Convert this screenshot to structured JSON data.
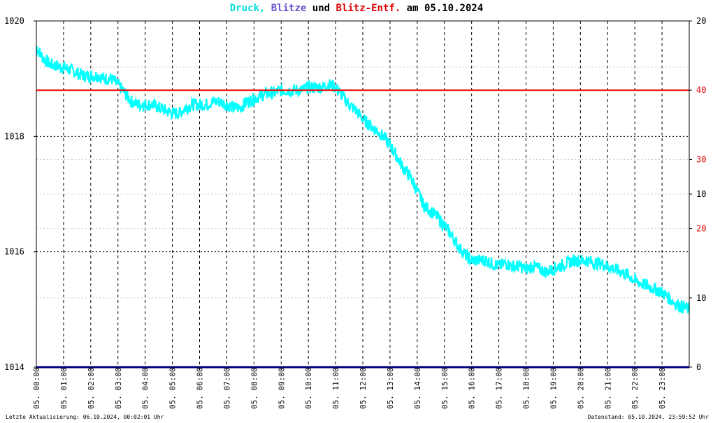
{
  "title": {
    "part1": "Druck,",
    "part2": "Blitze",
    "part3": "und",
    "part4": "Blitz-Entf.",
    "part5": "am 05.10.2024",
    "colors": {
      "druck": "#00dddd",
      "blitze": "#6655cc",
      "entf": "#dd0000",
      "text": "#000000"
    }
  },
  "footer": {
    "left": "Letzte Aktualisierung: 06.10.2024, 00:02:01 Uhr",
    "right": "Datenstand: 05.10.2024, 23:59:52 Uhr"
  },
  "chart_data": {
    "type": "line",
    "title": "Druck, Blitze und Blitz-Entf. am 05.10.2024",
    "xlabel": "",
    "ylabel": "",
    "x_range_hours": [
      0,
      24
    ],
    "ylim": [
      1014,
      1020
    ],
    "y_ticks_left": [
      1020,
      1018,
      1016,
      1014
    ],
    "x_tick_labels": [
      "05. 00:00",
      "05. 01:00",
      "05. 02:00",
      "05. 03:00",
      "05. 04:00",
      "05. 05:00",
      "05. 06:00",
      "05. 07:00",
      "05. 08:00",
      "05. 09:00",
      "05. 10:00",
      "05. 11:00",
      "05. 12:00",
      "05. 13:00",
      "05. 14:00",
      "05. 15:00",
      "05. 16:00",
      "05. 17:00",
      "05. 18:00",
      "05. 19:00",
      "05. 20:00",
      "05. 21:00",
      "05. 22:00",
      "05. 23:00"
    ],
    "right_axis_labels": [
      {
        "label": "20",
        "color": "#000000",
        "value": 1020
      },
      {
        "label": "40",
        "color": "#dd0000",
        "value": 1018.8
      },
      {
        "label": "30",
        "color": "#dd0000",
        "value": 1017.6
      },
      {
        "label": "10",
        "color": "#000000",
        "value": 1017.0
      },
      {
        "label": "20",
        "color": "#dd0000",
        "value": 1016.4
      },
      {
        "label": "10",
        "color": "#000000",
        "value": 1015.2
      },
      {
        "label": "0",
        "color": "#000000",
        "value": 1014
      }
    ],
    "reference_line": {
      "value": 1018.8,
      "color": "#ff0000"
    },
    "baseline": {
      "value": 1014,
      "color": "#000080"
    },
    "grid": true,
    "series": [
      {
        "name": "Druck",
        "color": "#00ffff",
        "x": [
          0,
          0.25,
          0.5,
          0.75,
          1,
          1.25,
          1.5,
          1.75,
          2,
          2.25,
          2.5,
          2.75,
          3,
          3.25,
          3.5,
          3.75,
          4,
          4.25,
          4.5,
          4.75,
          5,
          5.25,
          5.5,
          5.75,
          6,
          6.25,
          6.5,
          6.75,
          7,
          7.25,
          7.5,
          7.75,
          8,
          8.25,
          8.5,
          8.75,
          9,
          9.25,
          9.5,
          9.75,
          10,
          10.25,
          10.5,
          10.75,
          11,
          11.25,
          11.5,
          11.75,
          12,
          12.25,
          12.5,
          12.75,
          13,
          13.25,
          13.5,
          13.75,
          14,
          14.25,
          14.5,
          14.75,
          15,
          15.25,
          15.5,
          15.75,
          16,
          16.25,
          16.5,
          16.75,
          17,
          17.25,
          17.5,
          17.75,
          18,
          18.25,
          18.5,
          18.75,
          19,
          19.25,
          19.5,
          19.75,
          20,
          20.25,
          20.5,
          20.75,
          21,
          21.25,
          21.5,
          21.75,
          22,
          22.25,
          22.5,
          22.75,
          23,
          23.25,
          23.5,
          23.75,
          24
        ],
        "values": [
          1019.55,
          1019.35,
          1019.25,
          1019.22,
          1019.2,
          1019.15,
          1019.1,
          1019.05,
          1019.05,
          1019.05,
          1019.0,
          1019.0,
          1018.9,
          1018.75,
          1018.6,
          1018.55,
          1018.55,
          1018.55,
          1018.5,
          1018.45,
          1018.4,
          1018.4,
          1018.5,
          1018.55,
          1018.55,
          1018.55,
          1018.6,
          1018.6,
          1018.55,
          1018.5,
          1018.5,
          1018.6,
          1018.65,
          1018.7,
          1018.75,
          1018.75,
          1018.8,
          1018.8,
          1018.8,
          1018.8,
          1018.85,
          1018.85,
          1018.85,
          1018.9,
          1018.85,
          1018.7,
          1018.55,
          1018.45,
          1018.3,
          1018.2,
          1018.1,
          1018.0,
          1017.85,
          1017.65,
          1017.45,
          1017.3,
          1017.05,
          1016.8,
          1016.7,
          1016.6,
          1016.45,
          1016.3,
          1016.1,
          1015.95,
          1015.85,
          1015.85,
          1015.85,
          1015.8,
          1015.75,
          1015.8,
          1015.75,
          1015.75,
          1015.7,
          1015.75,
          1015.7,
          1015.65,
          1015.7,
          1015.75,
          1015.8,
          1015.85,
          1015.85,
          1015.85,
          1015.8,
          1015.8,
          1015.75,
          1015.7,
          1015.65,
          1015.6,
          1015.5,
          1015.45,
          1015.4,
          1015.35,
          1015.3,
          1015.2,
          1015.1,
          1015.05,
          1015.0
        ]
      }
    ]
  }
}
